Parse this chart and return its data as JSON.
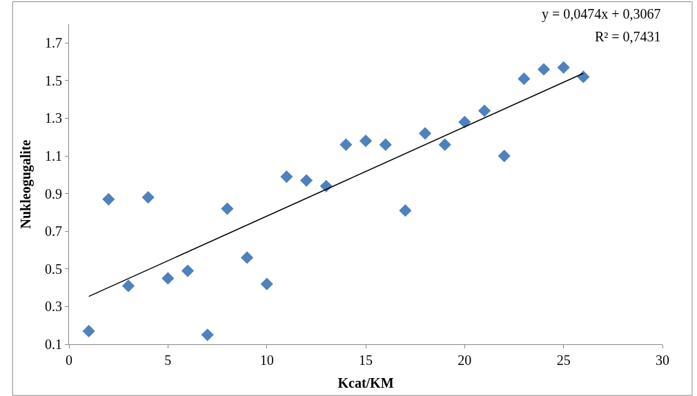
{
  "chart_data": {
    "type": "scatter",
    "xlabel": "Kcat/KM",
    "ylabel": "Nukleogugalite",
    "annotations": [
      "y = 0,0474x + 0,3067",
      "R² = 0,7431"
    ],
    "x": [
      1,
      2,
      3,
      4,
      5,
      6,
      7,
      8,
      9,
      10,
      11,
      12,
      13,
      14,
      15,
      16,
      17,
      18,
      19,
      20,
      21,
      22,
      23,
      24,
      25,
      26
    ],
    "series": [
      {
        "color": "#4f81bd",
        "marker": "diamond",
        "values": [
          0.17,
          0.87,
          0.41,
          0.88,
          0.45,
          0.49,
          0.15,
          0.82,
          0.56,
          0.42,
          0.99,
          0.97,
          0.94,
          1.16,
          1.18,
          1.16,
          0.81,
          1.22,
          1.16,
          1.28,
          1.34,
          1.1,
          1.51,
          1.56,
          1.57,
          1.52
        ]
      },
      {
        "type": "line",
        "color": "#000000",
        "marker": "none",
        "x": [
          1,
          26
        ],
        "values": [
          0.354,
          1.539
        ]
      }
    ],
    "xlim": [
      0,
      30
    ],
    "ylim": [
      0.1,
      1.8
    ],
    "xticks": [
      0,
      5,
      10,
      15,
      20,
      25,
      30
    ],
    "yticks": [
      {
        "value": 0.1,
        "label": "0.1"
      },
      {
        "value": 0.3,
        "label": "0.3"
      },
      {
        "value": 0.5,
        "label": "0.5"
      },
      {
        "value": 0.7,
        "label": "0.7"
      },
      {
        "value": 0.9,
        "label": "0.9"
      },
      {
        "value": 1.1,
        "label": "1.1"
      },
      {
        "value": 1.3,
        "label": "1.3"
      },
      {
        "value": 1.5,
        "label": "1.5"
      },
      {
        "value": 1.7,
        "label": "1.7"
      }
    ],
    "grid": false,
    "legend": false
  }
}
